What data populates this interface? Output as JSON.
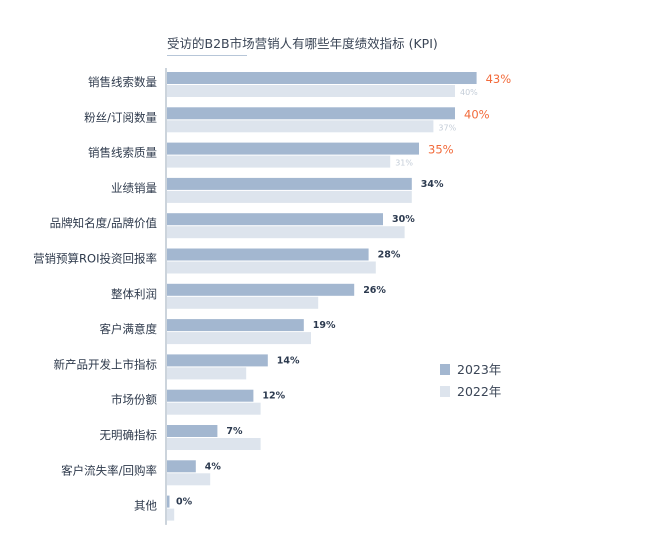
{
  "chart_data": {
    "type": "bar",
    "orientation": "horizontal",
    "title": "受访的B2B市场营销人有哪些年度绩效指标 (KPI)",
    "categories": [
      "销售线索数量",
      "粉丝/订阅数量",
      "销售线索质量",
      "业绩销量",
      "品牌知名度/品牌价值",
      "营销预算ROI投资回报率",
      "整体利润",
      "客户满意度",
      "新产品开发上市指标",
      "市场份额",
      "无明确指标",
      "客户流失率/回购率",
      "其他"
    ],
    "series": [
      {
        "name": "2023年",
        "color": "#a3b7d0",
        "values": [
          43,
          40,
          35,
          34,
          30,
          28,
          26,
          19,
          14,
          12,
          7,
          4,
          0
        ],
        "labels": [
          "43%",
          "40%",
          "35%",
          "34%",
          "30%",
          "28%",
          "26%",
          "19%",
          "14%",
          "12%",
          "7%",
          "4%",
          "0%"
        ]
      },
      {
        "name": "2022年",
        "color": "#dde4ed",
        "values": [
          40,
          37,
          31,
          34,
          33,
          29,
          21,
          20,
          11,
          13,
          13,
          6,
          1
        ],
        "labels": [
          "40%",
          "37%",
          "31%",
          "",
          "",
          "",
          "",
          "",
          "",
          "",
          "",
          "",
          ""
        ]
      }
    ],
    "highlight_top": 3,
    "highlight_color": "#f26a3a",
    "label_color": "#2c3a4f",
    "faint_label_color": "#c4cdd8",
    "axis_color": "#9aa8b8",
    "legend_position": "right",
    "grid": false
  }
}
